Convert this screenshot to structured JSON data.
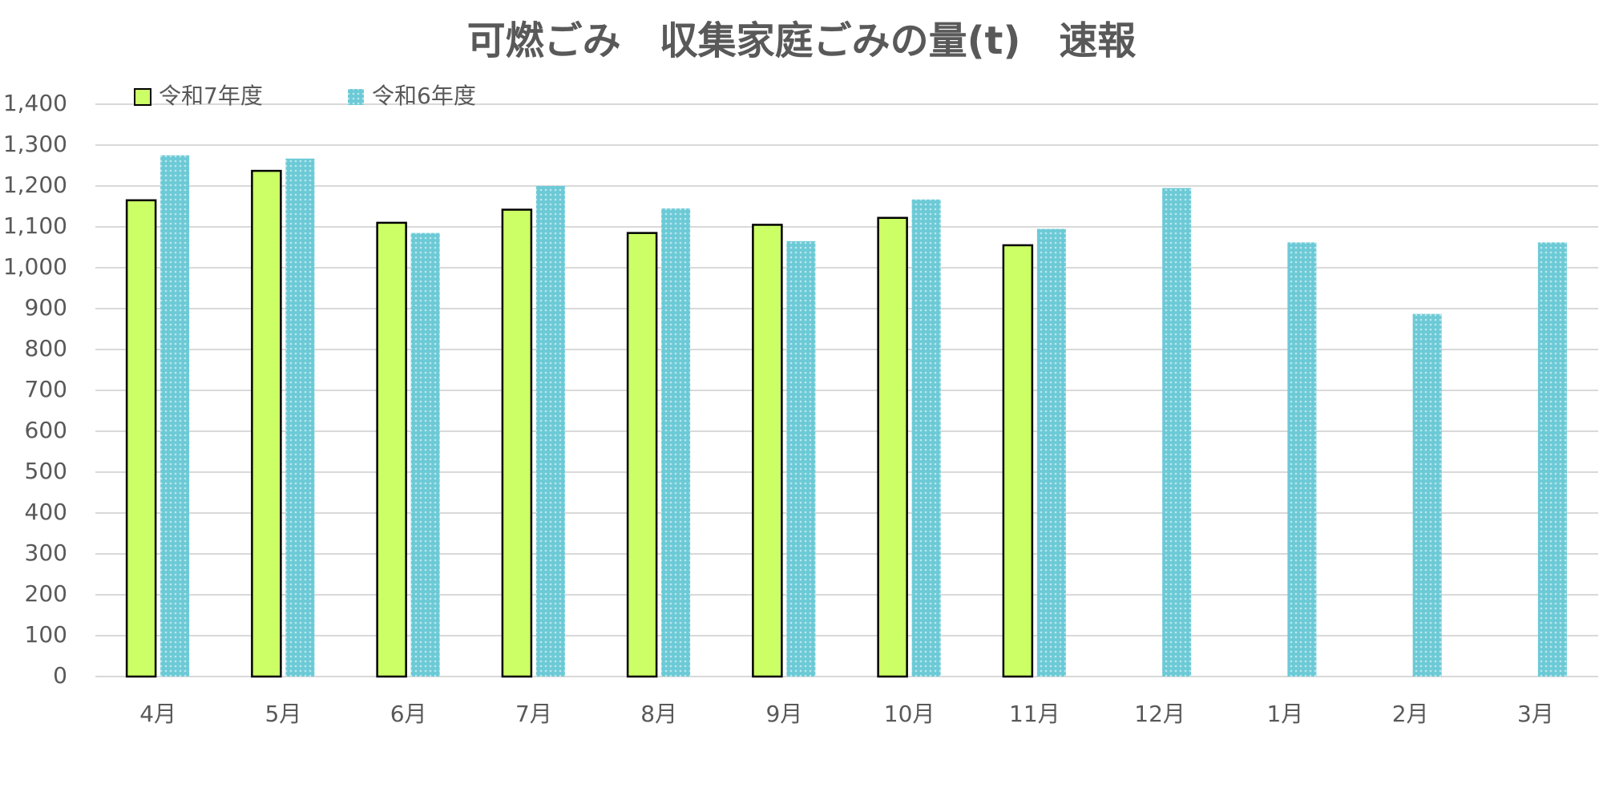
{
  "chart_data": {
    "type": "bar",
    "title": "可燃ごみ　収集家庭ごみの量(t)　速報",
    "categories": [
      "4月",
      "5月",
      "6月",
      "7月",
      "8月",
      "9月",
      "10月",
      "11月",
      "12月",
      "1月",
      "2月",
      "3月"
    ],
    "series": [
      {
        "name": "令和7年度",
        "color": "#ccff66",
        "values": [
          1165,
          1237,
          1110,
          1142,
          1085,
          1105,
          1122,
          1055,
          null,
          null,
          null,
          null
        ]
      },
      {
        "name": "令和6年度",
        "color": "#6ccad6",
        "values": [
          1275,
          1267,
          1085,
          1200,
          1145,
          1065,
          1167,
          1095,
          1195,
          1062,
          887,
          1062
        ]
      }
    ],
    "ylim": [
      0,
      1400
    ],
    "yticks": [
      0,
      100,
      200,
      300,
      400,
      500,
      600,
      700,
      800,
      900,
      {
        "value": 1000,
        "label": "1,000"
      },
      {
        "value": 1100,
        "label": "1,100"
      },
      {
        "value": 1200,
        "label": "1,200"
      },
      {
        "value": 1300,
        "label": "1,300"
      },
      {
        "value": 1400,
        "label": "1,400"
      }
    ],
    "grid": true,
    "legend": "top-left"
  }
}
